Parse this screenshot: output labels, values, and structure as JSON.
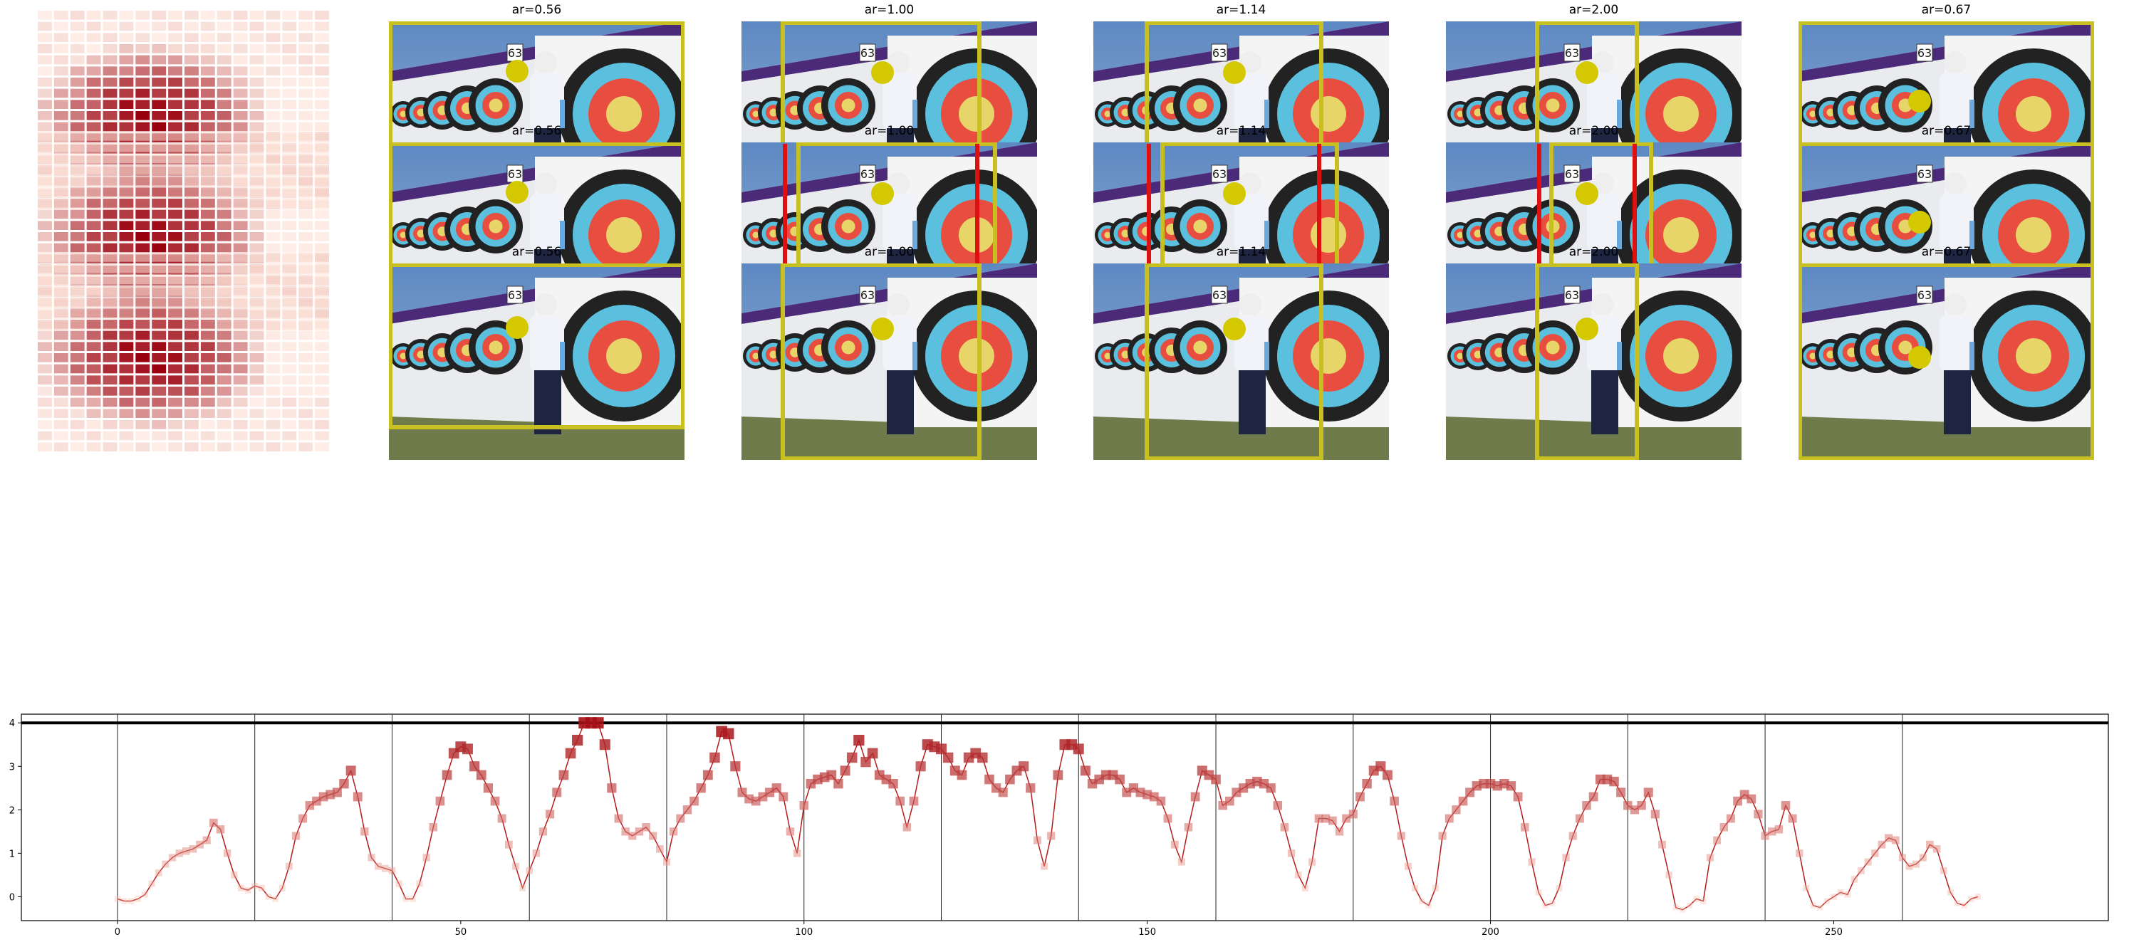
{
  "figure": {
    "rows": [
      {
        "panels": [
          {
            "title": "ar=0.56"
          },
          {
            "title": "ar=1.00"
          },
          {
            "title": "ar=1.14"
          },
          {
            "title": "ar=2.00"
          },
          {
            "title": "ar=0.67"
          }
        ]
      },
      {
        "panels": [
          {
            "title": "ar=0.56"
          },
          {
            "title": "ar=1.00"
          },
          {
            "title": "ar=1.14"
          },
          {
            "title": "ar=2.00"
          },
          {
            "title": "ar=0.67"
          }
        ]
      },
      {
        "panels": [
          {
            "title": "ar=0.56"
          },
          {
            "title": "ar=1.00"
          },
          {
            "title": "ar=1.14"
          },
          {
            "title": "ar=2.00"
          },
          {
            "title": "ar=0.67"
          }
        ]
      }
    ],
    "colors": {
      "box_yellow": "#c8c020",
      "box_red": "#e01010",
      "dot_yellow": "#d4c800",
      "heat_low": "#fde0d4",
      "heat_high": "#99000d"
    },
    "photo_text": {
      "target_number": "63"
    }
  },
  "chart_data": {
    "type": "line",
    "xlim": [
      -14,
      290
    ],
    "ylim": [
      -0.55,
      4.2
    ],
    "xticks": [
      0,
      50,
      100,
      150,
      200,
      250
    ],
    "yticks": [
      0,
      1,
      2,
      3,
      4
    ],
    "vlines": [
      0,
      20,
      40,
      60,
      80,
      100,
      120,
      140,
      160,
      180,
      200,
      220,
      240,
      260
    ],
    "hline": 4.0,
    "series": [
      {
        "values": [
          -0.05,
          -0.1,
          -0.1,
          -0.05,
          0.05,
          0.3,
          0.55,
          0.75,
          0.9,
          1.0,
          1.05,
          1.1,
          1.2,
          1.3,
          1.7,
          1.55,
          1.0,
          0.5,
          0.2,
          0.15,
          0.25,
          0.2,
          0.0,
          -0.05,
          0.2,
          0.7,
          1.4,
          1.8,
          2.1,
          2.2,
          2.3,
          2.35,
          2.4,
          2.6,
          2.9,
          2.3,
          1.5,
          0.9,
          0.7,
          0.65,
          0.6,
          0.3,
          -0.05,
          -0.05,
          0.3,
          0.9,
          1.6,
          2.2,
          2.8,
          3.3,
          3.45,
          3.4,
          3.0,
          2.8,
          2.5,
          2.2,
          1.8,
          1.2,
          0.7,
          0.2,
          0.6,
          1.0,
          1.5,
          1.9,
          2.4,
          2.8,
          3.3,
          3.6,
          4.0,
          4.0,
          4.0,
          3.5,
          2.5,
          1.8,
          1.5,
          1.4,
          1.5,
          1.6,
          1.4,
          1.1,
          0.8,
          1.5,
          1.8,
          2.0,
          2.2,
          2.5,
          2.8,
          3.2,
          3.8,
          3.75,
          3.0,
          2.4,
          2.25,
          2.2,
          2.3,
          2.4,
          2.5,
          2.3,
          1.5,
          1.0,
          2.1,
          2.6,
          2.7,
          2.75,
          2.8,
          2.6,
          2.9,
          3.2,
          3.6,
          3.1,
          3.3,
          2.8,
          2.7,
          2.6,
          2.2,
          1.6,
          2.2,
          3.0,
          3.5,
          3.45,
          3.4,
          3.2,
          2.9,
          2.8,
          3.2,
          3.3,
          3.2,
          2.7,
          2.5,
          2.4,
          2.7,
          2.9,
          3.0,
          2.5,
          1.3,
          0.7,
          1.4,
          2.8,
          3.5,
          3.5,
          3.4,
          2.9,
          2.6,
          2.7,
          2.8,
          2.8,
          2.7,
          2.4,
          2.5,
          2.4,
          2.35,
          2.3,
          2.2,
          1.8,
          1.2,
          0.8,
          1.6,
          2.3,
          2.9,
          2.8,
          2.7,
          2.1,
          2.2,
          2.4,
          2.5,
          2.6,
          2.65,
          2.6,
          2.5,
          2.1,
          1.6,
          1.0,
          0.5,
          0.2,
          0.8,
          1.8,
          1.8,
          1.75,
          1.5,
          1.8,
          1.9,
          2.3,
          2.6,
          2.9,
          3.0,
          2.8,
          2.2,
          1.4,
          0.7,
          0.2,
          -0.1,
          -0.2,
          0.2,
          1.4,
          1.8,
          2.0,
          2.2,
          2.4,
          2.55,
          2.6,
          2.6,
          2.55,
          2.6,
          2.55,
          2.3,
          1.6,
          0.8,
          0.1,
          -0.2,
          -0.15,
          0.2,
          0.9,
          1.4,
          1.8,
          2.1,
          2.3,
          2.7,
          2.7,
          2.65,
          2.4,
          2.1,
          2.0,
          2.1,
          2.4,
          1.9,
          1.2,
          0.5,
          -0.25,
          -0.3,
          -0.2,
          -0.05,
          -0.1,
          0.9,
          1.3,
          1.6,
          1.8,
          2.2,
          2.35,
          2.25,
          1.9,
          1.4,
          1.5,
          1.55,
          2.1,
          1.8,
          1.0,
          0.2,
          -0.2,
          -0.25,
          -0.1,
          0.0,
          0.1,
          0.05,
          0.4,
          0.6,
          0.8,
          1.0,
          1.2,
          1.35,
          1.3,
          0.9,
          0.7,
          0.75,
          0.9,
          1.2,
          1.1,
          0.6,
          0.1,
          -0.15,
          -0.2,
          -0.05,
          0.0
        ]
      }
    ]
  }
}
